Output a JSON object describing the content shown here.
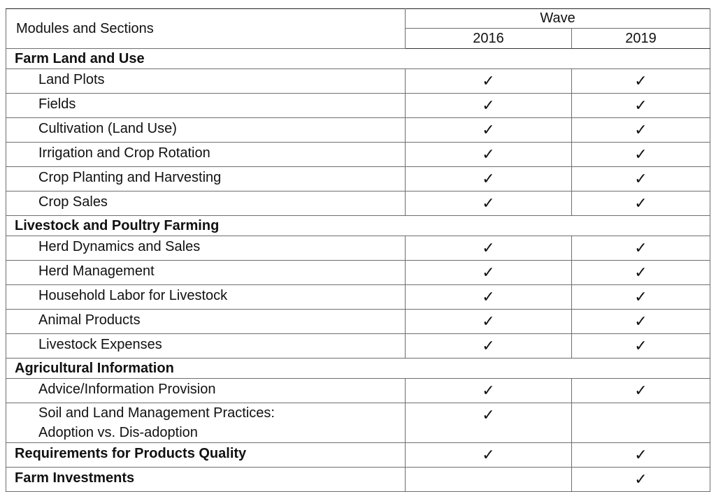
{
  "header": {
    "col_label": "Modules and Sections",
    "group_label": "Wave",
    "years": [
      "2016",
      "2019"
    ]
  },
  "check_glyph": "✓",
  "sections": [
    {
      "title": "Farm Land and Use",
      "rows": [
        {
          "label": "Land Plots",
          "w2016": "✓",
          "w2019": "✓"
        },
        {
          "label": "Fields",
          "w2016": "✓",
          "w2019": "✓"
        },
        {
          "label": "Cultivation (Land Use)",
          "w2016": "✓",
          "w2019": "✓"
        },
        {
          "label": "Irrigation and Crop Rotation",
          "w2016": "✓",
          "w2019": "✓"
        },
        {
          "label": "Crop Planting and Harvesting",
          "w2016": "✓",
          "w2019": "✓"
        },
        {
          "label": "Crop Sales",
          "w2016": "✓",
          "w2019": "✓"
        }
      ]
    },
    {
      "title": "Livestock and Poultry Farming",
      "rows": [
        {
          "label": "Herd Dynamics and Sales",
          "w2016": "✓",
          "w2019": "✓"
        },
        {
          "label": "Herd Management",
          "w2016": "✓",
          "w2019": "✓"
        },
        {
          "label": "Household Labor for Livestock",
          "w2016": "✓",
          "w2019": "✓"
        },
        {
          "label": "Animal Products",
          "w2016": "✓",
          "w2019": "✓"
        },
        {
          "label": "Livestock Expenses",
          "w2016": "✓",
          "w2019": "✓"
        }
      ]
    },
    {
      "title": "Agricultural Information",
      "rows": [
        {
          "label": "Advice/Information Provision",
          "w2016": "✓",
          "w2019": "✓"
        },
        {
          "label_line1": "Soil and Land Management Practices:",
          "label_line2": "Adoption vs. Dis-adoption",
          "w2016": "✓",
          "w2019": ""
        }
      ]
    }
  ],
  "standalone": [
    {
      "label": "Requirements for Products Quality",
      "w2016": "✓",
      "w2019": "✓"
    },
    {
      "label": "Farm Investments",
      "w2016": "",
      "w2019": "✓"
    }
  ]
}
